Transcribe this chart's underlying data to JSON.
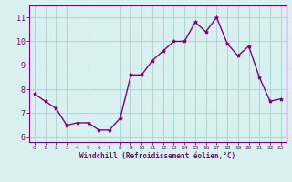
{
  "x": [
    0,
    1,
    2,
    3,
    4,
    5,
    6,
    7,
    8,
    9,
    10,
    11,
    12,
    13,
    14,
    15,
    16,
    17,
    18,
    19,
    20,
    21,
    22,
    23
  ],
  "y": [
    7.8,
    7.5,
    7.2,
    6.5,
    6.6,
    6.6,
    6.3,
    6.3,
    6.8,
    8.6,
    8.6,
    9.2,
    9.6,
    10.0,
    10.0,
    10.8,
    10.4,
    11.0,
    9.9,
    9.4,
    9.8,
    8.5,
    7.5,
    7.6
  ],
  "line_color": "#800080",
  "marker": "*",
  "marker_size": 3,
  "bg_color": "#d8f0f0",
  "grid_color": "#b0d4d4",
  "xlabel": "Windchill (Refroidissement éolien,°C)",
  "xlabel_color": "#800080",
  "tick_color": "#800080",
  "ylim": [
    5.8,
    11.5
  ],
  "xlim": [
    -0.5,
    23.5
  ],
  "yticks": [
    6,
    7,
    8,
    9,
    10,
    11
  ],
  "xticks": [
    0,
    1,
    2,
    3,
    4,
    5,
    6,
    7,
    8,
    9,
    10,
    11,
    12,
    13,
    14,
    15,
    16,
    17,
    18,
    19,
    20,
    21,
    22,
    23
  ],
  "spine_color": "#800080",
  "fig_bg_color": "#d8f0f0"
}
